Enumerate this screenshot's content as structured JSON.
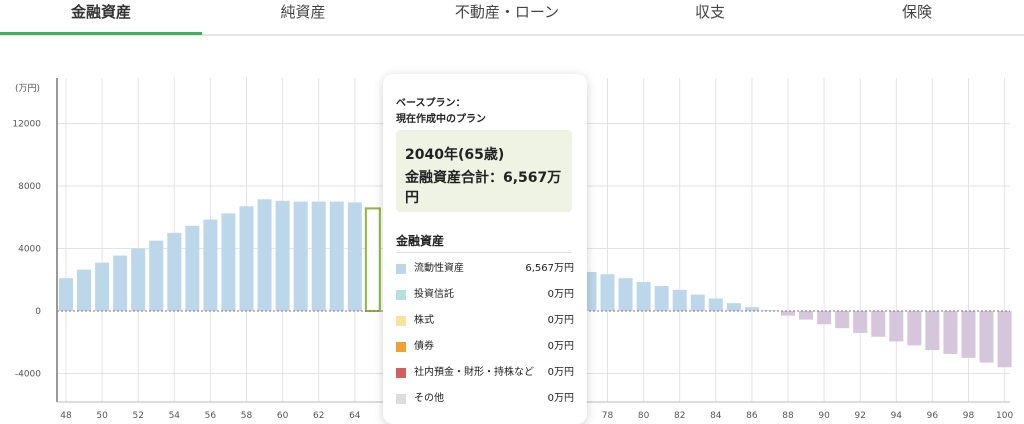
{
  "tabs": [
    {
      "label": "金融資産",
      "active": true
    },
    {
      "label": "純資産",
      "active": false
    },
    {
      "label": "不動産・ローン",
      "active": false
    },
    {
      "label": "収支",
      "active": false
    },
    {
      "label": "保険",
      "active": false
    }
  ],
  "colors": {
    "accent": "#3cb35a",
    "positive_bar": "#bcd6ea",
    "negative_bar": "#d6c6dc",
    "highlight": "#8cb840"
  },
  "tooltip": {
    "plan_line1": "ベースプラン：",
    "plan_line2": "現在作成中のプラン",
    "year": "2040年(65歳)",
    "total": "金融資産合計：6,567万円",
    "section_title": "金融資産",
    "items": [
      {
        "label": "流動性資産",
        "value": "6,567万円",
        "color": "#bcd6ea"
      },
      {
        "label": "投資信託",
        "value": "0万円",
        "color": "#b5e0dc"
      },
      {
        "label": "株式",
        "value": "0万円",
        "color": "#f8e39a"
      },
      {
        "label": "債券",
        "value": "0万円",
        "color": "#f0a035"
      },
      {
        "label": "社内預金・財形・持株など",
        "value": "0万円",
        "color": "#d06060"
      },
      {
        "label": "その他",
        "value": "0万円",
        "color": "#dddddd"
      }
    ]
  },
  "chart_data": {
    "type": "bar",
    "ylabel": "(万円)",
    "ylim": [
      -4500,
      14000
    ],
    "yticks": [
      12000,
      8000,
      4000,
      0,
      -4000
    ],
    "xticks": [
      48,
      50,
      52,
      54,
      56,
      58,
      60,
      62,
      64,
      78,
      80,
      82,
      84,
      86,
      88,
      90,
      92,
      94,
      96,
      98,
      100
    ],
    "grid": true,
    "highlight_x": 65,
    "series": [
      {
        "x": [
          48,
          49,
          50,
          51,
          52,
          53,
          54,
          55,
          56,
          57,
          58,
          59,
          60,
          61,
          62,
          63,
          64,
          65,
          75,
          76,
          77,
          78,
          79,
          80,
          81,
          82,
          83,
          84,
          85,
          86,
          87,
          88,
          89,
          90,
          91,
          92,
          93,
          94,
          95,
          96,
          97,
          98,
          99,
          100
        ],
        "values": [
          2100,
          2650,
          3100,
          3550,
          4000,
          4500,
          5000,
          5450,
          5850,
          6250,
          6700,
          7150,
          7050,
          7000,
          7000,
          7000,
          6950,
          6567,
          2700,
          2650,
          2500,
          2350,
          2100,
          1850,
          1600,
          1350,
          1050,
          800,
          500,
          250,
          50,
          -300,
          -550,
          -850,
          -1100,
          -1400,
          -1650,
          -1950,
          -2200,
          -2500,
          -2750,
          -3000,
          -3300,
          -3600
        ]
      }
    ]
  }
}
